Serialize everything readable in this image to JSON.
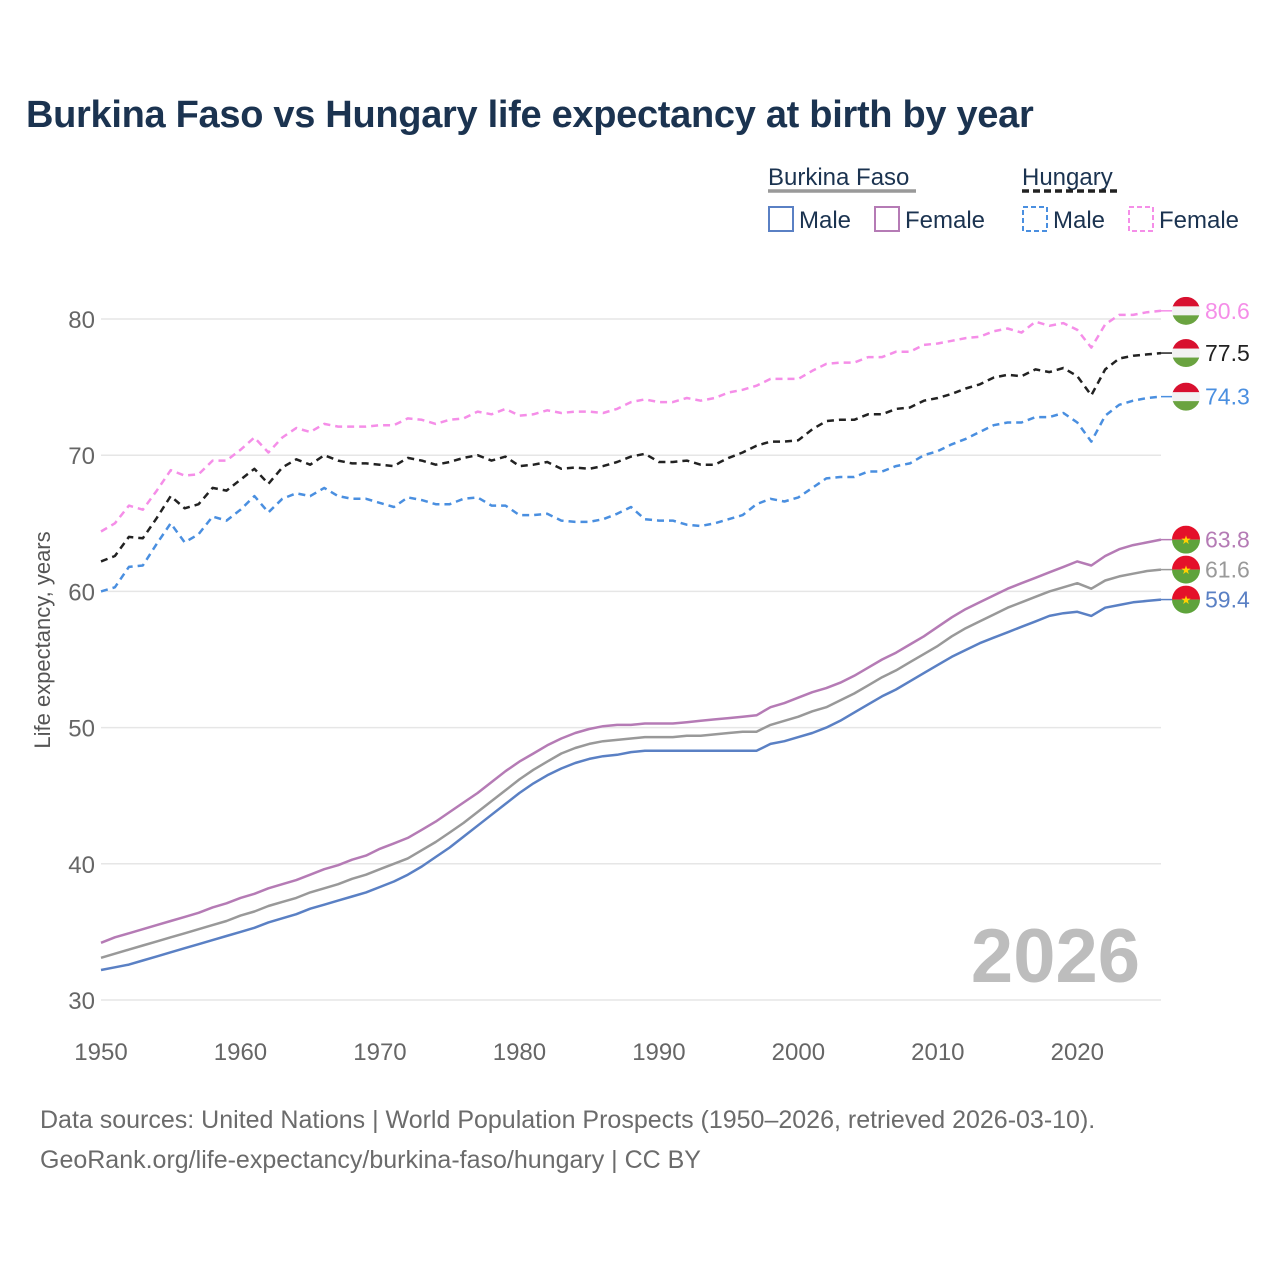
{
  "chart_data": {
    "type": "line",
    "title": "Burkina Faso vs Hungary life expectancy at birth by year",
    "xlabel": "",
    "ylabel": "Life expectancy, years",
    "xlim": [
      1950,
      2026
    ],
    "ylim": [
      30,
      80
    ],
    "x_ticks": [
      1950,
      1960,
      1970,
      1980,
      1990,
      2000,
      2010,
      2020
    ],
    "y_ticks": [
      30,
      40,
      50,
      60,
      70,
      80
    ],
    "grid": true,
    "legend_position": "top-right",
    "year_watermark": "2026",
    "legend": {
      "groups": [
        {
          "country": "Burkina Faso",
          "items": [
            "Male",
            "Female"
          ]
        },
        {
          "country": "Hungary",
          "items": [
            "Male",
            "Female"
          ]
        }
      ]
    },
    "years": [
      1950,
      1951,
      1952,
      1953,
      1954,
      1955,
      1956,
      1957,
      1958,
      1959,
      1960,
      1961,
      1962,
      1963,
      1964,
      1965,
      1966,
      1967,
      1968,
      1969,
      1970,
      1971,
      1972,
      1973,
      1974,
      1975,
      1976,
      1977,
      1978,
      1979,
      1980,
      1981,
      1982,
      1983,
      1984,
      1985,
      1986,
      1987,
      1988,
      1989,
      1990,
      1991,
      1992,
      1993,
      1994,
      1995,
      1996,
      1997,
      1998,
      1999,
      2000,
      2001,
      2002,
      2003,
      2004,
      2005,
      2006,
      2007,
      2008,
      2009,
      2010,
      2011,
      2012,
      2013,
      2014,
      2015,
      2016,
      2017,
      2018,
      2019,
      2020,
      2021,
      2022,
      2023,
      2024,
      2025,
      2026
    ],
    "series": [
      {
        "name": "Hungary Female",
        "country": "Hungary",
        "sex": "Female",
        "color": "#f58ee8",
        "dashed": true,
        "final_label": "80.6",
        "values": [
          64.4,
          65.0,
          66.3,
          66.0,
          67.4,
          68.9,
          68.5,
          68.6,
          69.6,
          69.6,
          70.4,
          71.3,
          70.2,
          71.3,
          72.0,
          71.7,
          72.3,
          72.1,
          72.1,
          72.1,
          72.2,
          72.2,
          72.7,
          72.6,
          72.3,
          72.6,
          72.7,
          73.2,
          73.0,
          73.4,
          72.9,
          73.0,
          73.3,
          73.1,
          73.2,
          73.2,
          73.1,
          73.4,
          73.9,
          74.1,
          73.9,
          73.9,
          74.2,
          74.0,
          74.2,
          74.6,
          74.8,
          75.1,
          75.6,
          75.6,
          75.6,
          76.2,
          76.7,
          76.8,
          76.8,
          77.2,
          77.2,
          77.6,
          77.6,
          78.1,
          78.2,
          78.4,
          78.6,
          78.7,
          79.1,
          79.3,
          79.0,
          79.8,
          79.5,
          79.7,
          79.2,
          77.9,
          79.6,
          80.3,
          80.3,
          80.5,
          80.6
        ]
      },
      {
        "name": "Hungary Total",
        "country": "Hungary",
        "sex": "Total",
        "color": "#222222",
        "dashed": true,
        "final_label": "77.5",
        "values": [
          62.2,
          62.6,
          64.0,
          63.9,
          65.4,
          67.0,
          66.1,
          66.4,
          67.6,
          67.4,
          68.2,
          69.0,
          67.9,
          69.1,
          69.7,
          69.3,
          70.0,
          69.6,
          69.4,
          69.4,
          69.3,
          69.2,
          69.8,
          69.6,
          69.3,
          69.5,
          69.8,
          70.0,
          69.6,
          69.9,
          69.2,
          69.3,
          69.5,
          69.0,
          69.1,
          69.0,
          69.2,
          69.5,
          69.9,
          70.1,
          69.5,
          69.5,
          69.6,
          69.3,
          69.3,
          69.8,
          70.2,
          70.7,
          71.0,
          71.0,
          71.1,
          71.9,
          72.5,
          72.6,
          72.6,
          73.0,
          73.0,
          73.4,
          73.5,
          74.0,
          74.2,
          74.5,
          74.9,
          75.2,
          75.7,
          75.9,
          75.8,
          76.3,
          76.1,
          76.4,
          75.8,
          74.4,
          76.3,
          77.1,
          77.3,
          77.4,
          77.5
        ]
      },
      {
        "name": "Hungary Male",
        "country": "Hungary",
        "sex": "Male",
        "color": "#4a8fe0",
        "dashed": true,
        "final_label": "74.3",
        "values": [
          60.0,
          60.3,
          61.8,
          61.9,
          63.5,
          65.0,
          63.6,
          64.2,
          65.5,
          65.2,
          66.0,
          67.0,
          65.8,
          66.8,
          67.2,
          67.0,
          67.6,
          67.0,
          66.8,
          66.8,
          66.5,
          66.2,
          66.9,
          66.7,
          66.4,
          66.4,
          66.8,
          66.9,
          66.3,
          66.3,
          65.6,
          65.6,
          65.7,
          65.2,
          65.1,
          65.1,
          65.3,
          65.7,
          66.2,
          65.3,
          65.2,
          65.2,
          64.9,
          64.8,
          65.0,
          65.3,
          65.6,
          66.4,
          66.8,
          66.6,
          66.9,
          67.6,
          68.3,
          68.4,
          68.4,
          68.8,
          68.8,
          69.2,
          69.4,
          70.0,
          70.3,
          70.8,
          71.2,
          71.7,
          72.2,
          72.4,
          72.4,
          72.8,
          72.8,
          73.1,
          72.4,
          71.0,
          72.9,
          73.7,
          74.0,
          74.2,
          74.3
        ]
      },
      {
        "name": "Burkina Faso Female",
        "country": "Burkina Faso",
        "sex": "Female",
        "color": "#b57bb5",
        "dashed": false,
        "final_label": "63.8",
        "values": [
          34.2,
          34.6,
          34.9,
          35.2,
          35.5,
          35.8,
          36.1,
          36.4,
          36.8,
          37.1,
          37.5,
          37.8,
          38.2,
          38.5,
          38.8,
          39.2,
          39.6,
          39.9,
          40.3,
          40.6,
          41.1,
          41.5,
          41.9,
          42.5,
          43.1,
          43.8,
          44.5,
          45.2,
          46.0,
          46.8,
          47.5,
          48.1,
          48.7,
          49.2,
          49.6,
          49.9,
          50.1,
          50.2,
          50.2,
          50.3,
          50.3,
          50.3,
          50.4,
          50.5,
          50.6,
          50.7,
          50.8,
          50.9,
          51.5,
          51.8,
          52.2,
          52.6,
          52.9,
          53.3,
          53.8,
          54.4,
          55.0,
          55.5,
          56.1,
          56.7,
          57.4,
          58.1,
          58.7,
          59.2,
          59.7,
          60.2,
          60.6,
          61.0,
          61.4,
          61.8,
          62.2,
          61.9,
          62.6,
          63.1,
          63.4,
          63.6,
          63.8
        ]
      },
      {
        "name": "Burkina Faso Total",
        "country": "Burkina Faso",
        "sex": "Total",
        "color": "#999999",
        "dashed": false,
        "final_label": "61.6",
        "values": [
          33.1,
          33.4,
          33.7,
          34.0,
          34.3,
          34.6,
          34.9,
          35.2,
          35.5,
          35.8,
          36.2,
          36.5,
          36.9,
          37.2,
          37.5,
          37.9,
          38.2,
          38.5,
          38.9,
          39.2,
          39.6,
          40.0,
          40.4,
          41.0,
          41.6,
          42.3,
          43.0,
          43.8,
          44.6,
          45.4,
          46.2,
          46.9,
          47.5,
          48.1,
          48.5,
          48.8,
          49.0,
          49.1,
          49.2,
          49.3,
          49.3,
          49.3,
          49.4,
          49.4,
          49.5,
          49.6,
          49.7,
          49.7,
          50.2,
          50.5,
          50.8,
          51.2,
          51.5,
          52.0,
          52.5,
          53.1,
          53.7,
          54.2,
          54.8,
          55.4,
          56.0,
          56.7,
          57.3,
          57.8,
          58.3,
          58.8,
          59.2,
          59.6,
          60.0,
          60.3,
          60.6,
          60.2,
          60.8,
          61.1,
          61.3,
          61.5,
          61.6
        ]
      },
      {
        "name": "Burkina Faso Male",
        "country": "Burkina Faso",
        "sex": "Male",
        "color": "#5a80c4",
        "dashed": false,
        "final_label": "59.4",
        "values": [
          32.2,
          32.4,
          32.6,
          32.9,
          33.2,
          33.5,
          33.8,
          34.1,
          34.4,
          34.7,
          35.0,
          35.3,
          35.7,
          36.0,
          36.3,
          36.7,
          37.0,
          37.3,
          37.6,
          37.9,
          38.3,
          38.7,
          39.2,
          39.8,
          40.5,
          41.2,
          42.0,
          42.8,
          43.6,
          44.4,
          45.2,
          45.9,
          46.5,
          47.0,
          47.4,
          47.7,
          47.9,
          48.0,
          48.2,
          48.3,
          48.3,
          48.3,
          48.3,
          48.3,
          48.3,
          48.3,
          48.3,
          48.3,
          48.8,
          49.0,
          49.3,
          49.6,
          50.0,
          50.5,
          51.1,
          51.7,
          52.3,
          52.8,
          53.4,
          54.0,
          54.6,
          55.2,
          55.7,
          56.2,
          56.6,
          57.0,
          57.4,
          57.8,
          58.2,
          58.4,
          58.5,
          58.2,
          58.8,
          59.0,
          59.2,
          59.3,
          59.4
        ]
      }
    ]
  },
  "footer": {
    "source_line": "Data sources: United Nations | World Population Prospects (1950–2026, retrieved 2026-03-10).",
    "site_line": "GeoRank.org/life-expectancy/burkina-faso/hungary | CC BY"
  }
}
